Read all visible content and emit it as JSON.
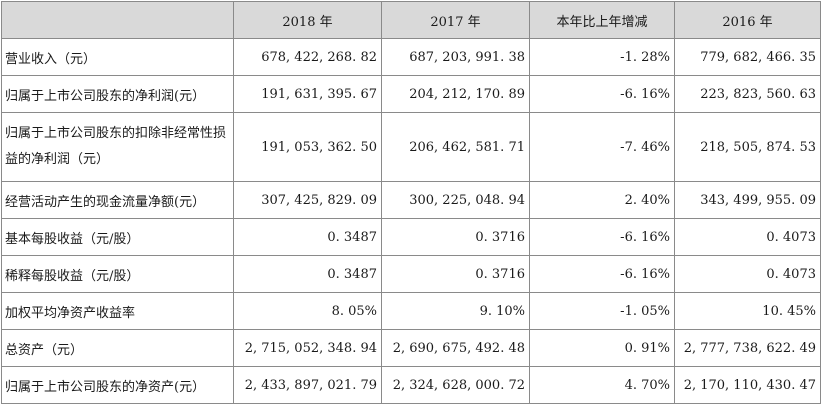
{
  "table": {
    "columns": [
      "",
      "2018 年",
      "2017 年",
      "本年比上年增减",
      "2016 年"
    ],
    "rows": [
      {
        "label": "营业收入（元）",
        "y2018": "678, 422, 268. 82",
        "y2017": "687, 203, 991. 38",
        "change": "-1. 28%",
        "y2016": "779, 682, 466. 35"
      },
      {
        "label": "归属于上市公司股东的净利润(元）",
        "y2018": "191, 631, 395. 67",
        "y2017": "204, 212, 170. 89",
        "change": "-6. 16%",
        "y2016": "223, 823, 560. 63"
      },
      {
        "label": "归属于上市公司股东的扣除非经常性损益的净利润（元）",
        "y2018": "191, 053, 362. 50",
        "y2017": "206, 462, 581. 71",
        "change": "-7. 46%",
        "y2016": "218, 505, 874. 53"
      },
      {
        "label": "经营活动产生的现金流量净额(元）",
        "y2018": "307, 425, 829. 09",
        "y2017": "300, 225, 048. 94",
        "change": "2. 40%",
        "y2016": "343, 499, 955. 09"
      },
      {
        "label": "基本每股收益（元/股）",
        "y2018": "0. 3487",
        "y2017": "0. 3716",
        "change": "-6. 16%",
        "y2016": "0. 4073"
      },
      {
        "label": "稀释每股收益（元/股）",
        "y2018": "0. 3487",
        "y2017": "0. 3716",
        "change": "-6. 16%",
        "y2016": "0. 4073"
      },
      {
        "label": "加权平均净资产收益率",
        "y2018": "8. 05%",
        "y2017": "9. 10%",
        "change": "-1. 05%",
        "y2016": "10. 45%"
      },
      {
        "label": "总资产（元）",
        "y2018": "2, 715, 052, 348. 94",
        "y2017": "2, 690, 675, 492. 48",
        "change": "0. 91%",
        "y2016": "2, 777, 738, 622. 49"
      },
      {
        "label": "归属于上市公司股东的净资产(元）",
        "y2018": "2, 433, 897, 021. 79",
        "y2017": "2, 324, 628, 000. 72",
        "change": "4. 70%",
        "y2016": "2, 170, 110, 430. 47"
      }
    ]
  }
}
